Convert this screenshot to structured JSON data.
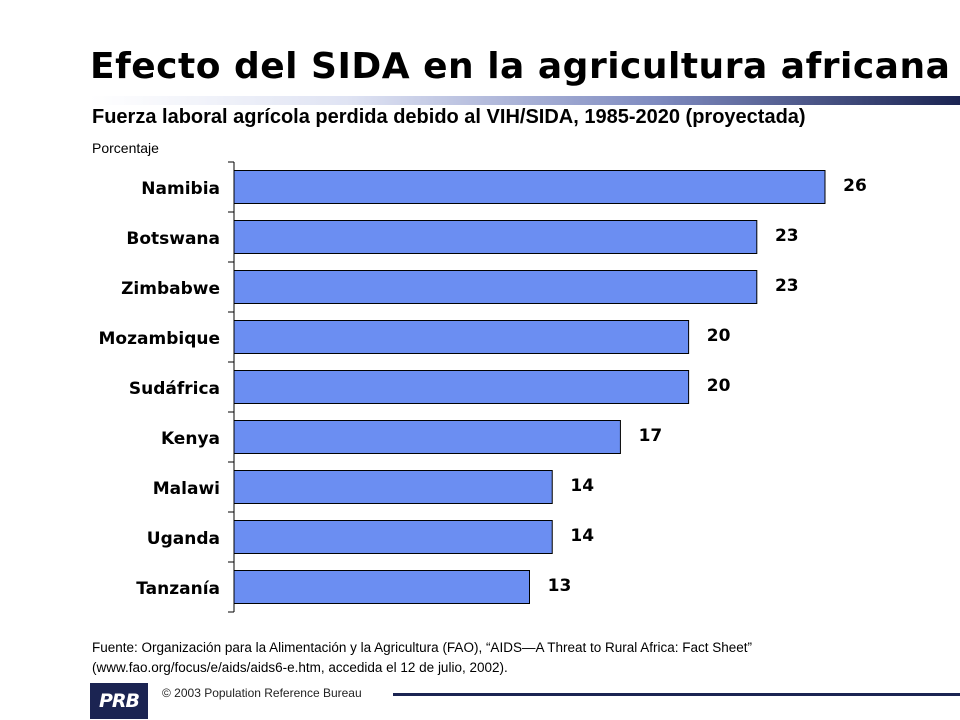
{
  "slide": {
    "title": "Efecto del SIDA en la agricultura africana",
    "subtitle": "Fuerza laboral agrícola perdida debido al VIH/SIDA, 1985-2020 (proyectada)",
    "unit_label": "Porcentaje",
    "source": "Fuente: Organización para la Alimentación y la Agricultura (FAO), “AIDS—A Threat to Rural Africa: Fact Sheet” (www.fao.org/focus/e/aids/aids6-e.htm, accedida el 12 de julio, 2002).",
    "copyright": "© 2003 Population Reference Bureau",
    "logo_text": "PRB"
  },
  "colors": {
    "bar_fill": "#6b8ef2",
    "bar_stroke": "#000000",
    "brand_dark": "#1b2452"
  },
  "chart_data": {
    "type": "bar",
    "orientation": "horizontal",
    "title": "Fuerza laboral agrícola perdida debido al VIH/SIDA, 1985-2020 (proyectada)",
    "ylabel": "Porcentaje",
    "categories": [
      "Namibia",
      "Botswana",
      "Zimbabwe",
      "Mozambique",
      "Sudáfrica",
      "Kenya",
      "Malawi",
      "Uganda",
      "Tanzanía"
    ],
    "values": [
      26,
      23,
      23,
      20,
      20,
      17,
      14,
      14,
      13
    ],
    "data_labels": true,
    "xlim": [
      0,
      26
    ],
    "grid": false,
    "legend": "none"
  }
}
